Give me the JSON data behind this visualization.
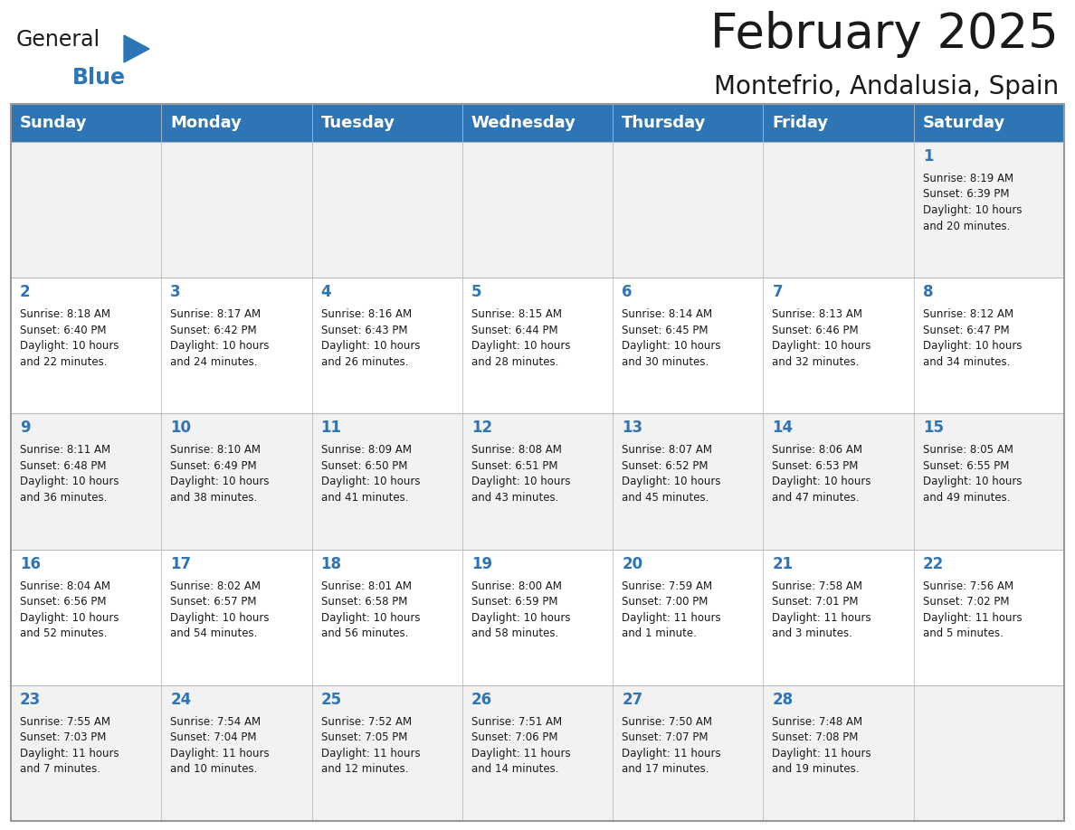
{
  "title": "February 2025",
  "subtitle": "Montefrio, Andalusia, Spain",
  "header_bg": "#2E75B6",
  "header_text_color": "#FFFFFF",
  "cell_bg_even": "#F2F2F2",
  "cell_bg_odd": "#FFFFFF",
  "day_names": [
    "Sunday",
    "Monday",
    "Tuesday",
    "Wednesday",
    "Thursday",
    "Friday",
    "Saturday"
  ],
  "days": [
    {
      "day": 1,
      "col": 6,
      "row": 0,
      "sunrise": "8:19 AM",
      "sunset": "6:39 PM",
      "daylight": "10 hours\nand 20 minutes."
    },
    {
      "day": 2,
      "col": 0,
      "row": 1,
      "sunrise": "8:18 AM",
      "sunset": "6:40 PM",
      "daylight": "10 hours\nand 22 minutes."
    },
    {
      "day": 3,
      "col": 1,
      "row": 1,
      "sunrise": "8:17 AM",
      "sunset": "6:42 PM",
      "daylight": "10 hours\nand 24 minutes."
    },
    {
      "day": 4,
      "col": 2,
      "row": 1,
      "sunrise": "8:16 AM",
      "sunset": "6:43 PM",
      "daylight": "10 hours\nand 26 minutes."
    },
    {
      "day": 5,
      "col": 3,
      "row": 1,
      "sunrise": "8:15 AM",
      "sunset": "6:44 PM",
      "daylight": "10 hours\nand 28 minutes."
    },
    {
      "day": 6,
      "col": 4,
      "row": 1,
      "sunrise": "8:14 AM",
      "sunset": "6:45 PM",
      "daylight": "10 hours\nand 30 minutes."
    },
    {
      "day": 7,
      "col": 5,
      "row": 1,
      "sunrise": "8:13 AM",
      "sunset": "6:46 PM",
      "daylight": "10 hours\nand 32 minutes."
    },
    {
      "day": 8,
      "col": 6,
      "row": 1,
      "sunrise": "8:12 AM",
      "sunset": "6:47 PM",
      "daylight": "10 hours\nand 34 minutes."
    },
    {
      "day": 9,
      "col": 0,
      "row": 2,
      "sunrise": "8:11 AM",
      "sunset": "6:48 PM",
      "daylight": "10 hours\nand 36 minutes."
    },
    {
      "day": 10,
      "col": 1,
      "row": 2,
      "sunrise": "8:10 AM",
      "sunset": "6:49 PM",
      "daylight": "10 hours\nand 38 minutes."
    },
    {
      "day": 11,
      "col": 2,
      "row": 2,
      "sunrise": "8:09 AM",
      "sunset": "6:50 PM",
      "daylight": "10 hours\nand 41 minutes."
    },
    {
      "day": 12,
      "col": 3,
      "row": 2,
      "sunrise": "8:08 AM",
      "sunset": "6:51 PM",
      "daylight": "10 hours\nand 43 minutes."
    },
    {
      "day": 13,
      "col": 4,
      "row": 2,
      "sunrise": "8:07 AM",
      "sunset": "6:52 PM",
      "daylight": "10 hours\nand 45 minutes."
    },
    {
      "day": 14,
      "col": 5,
      "row": 2,
      "sunrise": "8:06 AM",
      "sunset": "6:53 PM",
      "daylight": "10 hours\nand 47 minutes."
    },
    {
      "day": 15,
      "col": 6,
      "row": 2,
      "sunrise": "8:05 AM",
      "sunset": "6:55 PM",
      "daylight": "10 hours\nand 49 minutes."
    },
    {
      "day": 16,
      "col": 0,
      "row": 3,
      "sunrise": "8:04 AM",
      "sunset": "6:56 PM",
      "daylight": "10 hours\nand 52 minutes."
    },
    {
      "day": 17,
      "col": 1,
      "row": 3,
      "sunrise": "8:02 AM",
      "sunset": "6:57 PM",
      "daylight": "10 hours\nand 54 minutes."
    },
    {
      "day": 18,
      "col": 2,
      "row": 3,
      "sunrise": "8:01 AM",
      "sunset": "6:58 PM",
      "daylight": "10 hours\nand 56 minutes."
    },
    {
      "day": 19,
      "col": 3,
      "row": 3,
      "sunrise": "8:00 AM",
      "sunset": "6:59 PM",
      "daylight": "10 hours\nand 58 minutes."
    },
    {
      "day": 20,
      "col": 4,
      "row": 3,
      "sunrise": "7:59 AM",
      "sunset": "7:00 PM",
      "daylight": "11 hours\nand 1 minute."
    },
    {
      "day": 21,
      "col": 5,
      "row": 3,
      "sunrise": "7:58 AM",
      "sunset": "7:01 PM",
      "daylight": "11 hours\nand 3 minutes."
    },
    {
      "day": 22,
      "col": 6,
      "row": 3,
      "sunrise": "7:56 AM",
      "sunset": "7:02 PM",
      "daylight": "11 hours\nand 5 minutes."
    },
    {
      "day": 23,
      "col": 0,
      "row": 4,
      "sunrise": "7:55 AM",
      "sunset": "7:03 PM",
      "daylight": "11 hours\nand 7 minutes."
    },
    {
      "day": 24,
      "col": 1,
      "row": 4,
      "sunrise": "7:54 AM",
      "sunset": "7:04 PM",
      "daylight": "11 hours\nand 10 minutes."
    },
    {
      "day": 25,
      "col": 2,
      "row": 4,
      "sunrise": "7:52 AM",
      "sunset": "7:05 PM",
      "daylight": "11 hours\nand 12 minutes."
    },
    {
      "day": 26,
      "col": 3,
      "row": 4,
      "sunrise": "7:51 AM",
      "sunset": "7:06 PM",
      "daylight": "11 hours\nand 14 minutes."
    },
    {
      "day": 27,
      "col": 4,
      "row": 4,
      "sunrise": "7:50 AM",
      "sunset": "7:07 PM",
      "daylight": "11 hours\nand 17 minutes."
    },
    {
      "day": 28,
      "col": 5,
      "row": 4,
      "sunrise": "7:48 AM",
      "sunset": "7:08 PM",
      "daylight": "11 hours\nand 19 minutes."
    }
  ],
  "num_rows": 5,
  "num_cols": 7,
  "logo_general_color": "#1A1A1A",
  "logo_blue_color": "#2E75B6",
  "logo_triangle_color": "#2E75B6",
  "title_fontsize": 38,
  "subtitle_fontsize": 20,
  "header_fontsize": 13,
  "day_num_fontsize": 12,
  "cell_text_fontsize": 8.5
}
